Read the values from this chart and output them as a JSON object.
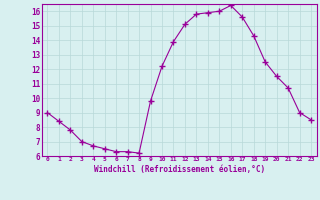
{
  "x": [
    0,
    1,
    2,
    3,
    4,
    5,
    6,
    7,
    8,
    9,
    10,
    11,
    12,
    13,
    14,
    15,
    16,
    17,
    18,
    19,
    20,
    21,
    22,
    23
  ],
  "y": [
    9.0,
    8.4,
    7.8,
    7.0,
    6.7,
    6.5,
    6.3,
    6.3,
    6.2,
    9.8,
    12.2,
    13.9,
    15.1,
    15.8,
    15.9,
    16.0,
    16.4,
    15.6,
    14.3,
    12.5,
    11.5,
    10.7,
    9.0,
    8.5
  ],
  "line_color": "#990099",
  "marker": "+",
  "marker_size": 4,
  "background_color": "#d8f0f0",
  "grid_color": "#b8d8d8",
  "xlabel": "Windchill (Refroidissement éolien,°C)",
  "xlabel_color": "#990099",
  "tick_color": "#990099",
  "axis_color": "#990099",
  "ylim": [
    6,
    16.5
  ],
  "yticks": [
    6,
    7,
    8,
    9,
    10,
    11,
    12,
    13,
    14,
    15,
    16
  ],
  "xticks": [
    0,
    1,
    2,
    3,
    4,
    5,
    6,
    7,
    8,
    9,
    10,
    11,
    12,
    13,
    14,
    15,
    16,
    17,
    18,
    19,
    20,
    21,
    22,
    23
  ],
  "xtick_labels": [
    "0",
    "1",
    "2",
    "3",
    "4",
    "5",
    "6",
    "7",
    "8",
    "9",
    "10",
    "11",
    "12",
    "13",
    "14",
    "15",
    "16",
    "17",
    "18",
    "19",
    "20",
    "21",
    "22",
    "23"
  ]
}
